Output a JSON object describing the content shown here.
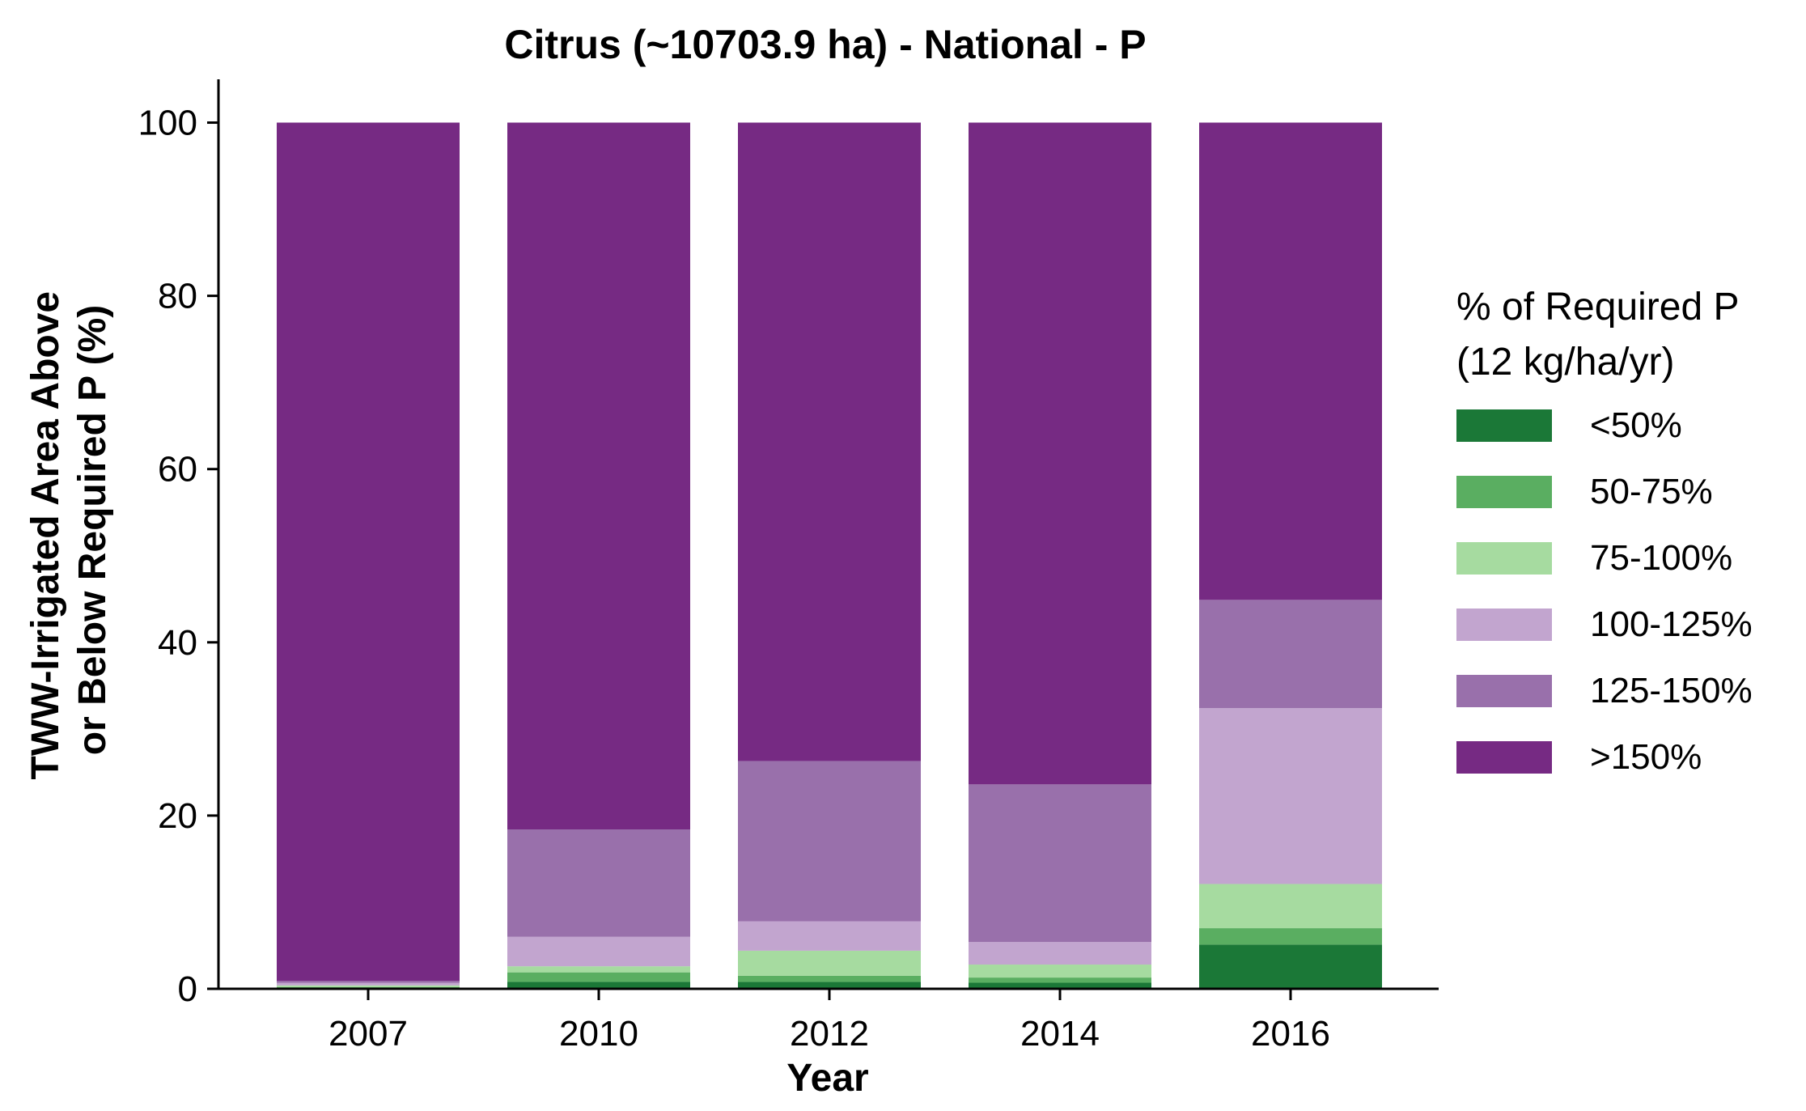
{
  "chart_data": {
    "type": "bar",
    "stacked": true,
    "title": "Citrus (~10703.9 ha) - National - P",
    "xlabel": "Year",
    "ylabel_lines": [
      "TWW-Irrigated Area Above",
      "or Below Required P (%)"
    ],
    "ylim": [
      0,
      105
    ],
    "yticks": [
      "0",
      "20",
      "40",
      "60",
      "80",
      "100"
    ],
    "grid": false,
    "legend_position": "right",
    "legend_title_lines": [
      "% of Required P",
      "(12 kg/ha/yr)"
    ],
    "categories": [
      "2007",
      "2010",
      "2012",
      "2014",
      "2016"
    ],
    "series": [
      {
        "name": "<50%",
        "color": "#1b7837",
        "values": [
          0.1,
          0.8,
          0.8,
          0.7,
          5.1
        ]
      },
      {
        "name": "50-75%",
        "color": "#5aae61",
        "values": [
          0.1,
          1.1,
          0.7,
          0.6,
          1.9
        ]
      },
      {
        "name": "75-100%",
        "color": "#a6dba0",
        "values": [
          0.2,
          0.7,
          2.9,
          1.5,
          5.1
        ]
      },
      {
        "name": "100-125%",
        "color": "#c2a5cf",
        "values": [
          0.3,
          3.4,
          3.4,
          2.6,
          20.3
        ]
      },
      {
        "name": "125-150%",
        "color": "#9970ab",
        "values": [
          0.2,
          12.4,
          18.5,
          18.2,
          12.5
        ]
      },
      {
        "name": ">150%",
        "color": "#762a83",
        "values": [
          99.1,
          81.6,
          73.7,
          76.4,
          55.1
        ]
      }
    ]
  }
}
